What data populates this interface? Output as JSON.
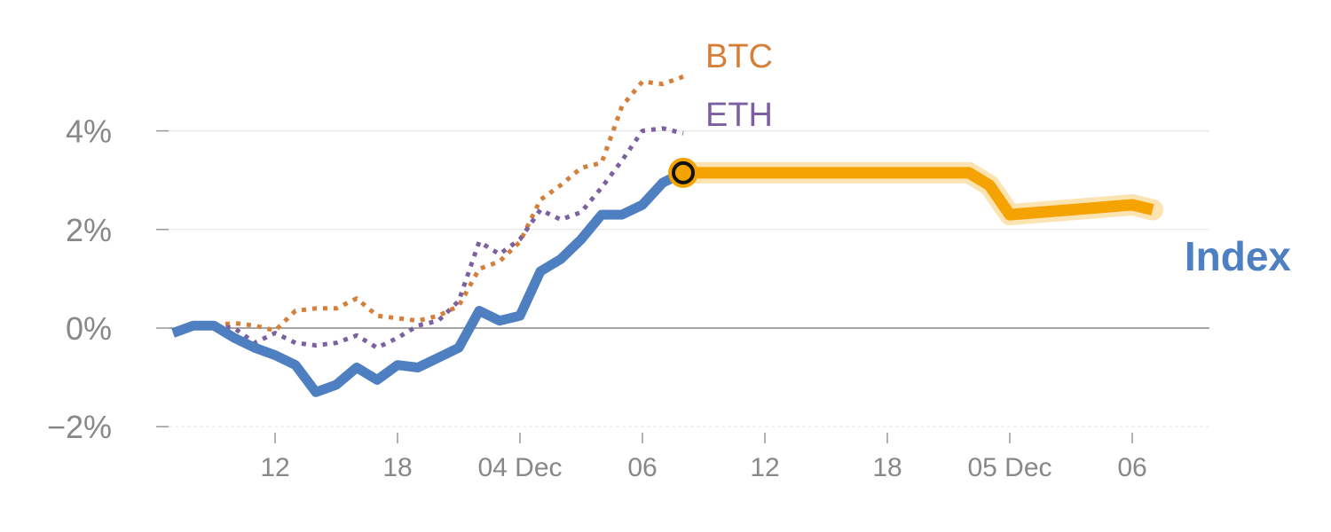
{
  "chart_data": {
    "type": "line",
    "y_unit": "%",
    "ylim": [
      -2.2,
      4.9
    ],
    "y_ticks": [
      {
        "value": 4,
        "label": "4%"
      },
      {
        "value": 2,
        "label": "2%"
      },
      {
        "value": 0,
        "label": "0%"
      },
      {
        "value": -2,
        "label": "−2%"
      }
    ],
    "x_range": [
      "2023-12-03T06:00",
      "2023-12-05T09:00"
    ],
    "x_ticks": [
      {
        "x": "2023-12-03T12:00",
        "label": "12"
      },
      {
        "x": "2023-12-03T18:00",
        "label": "18"
      },
      {
        "x": "2023-12-04T00:00",
        "label": "04 Dec"
      },
      {
        "x": "2023-12-04T06:00",
        "label": "06"
      },
      {
        "x": "2023-12-04T12:00",
        "label": "12"
      },
      {
        "x": "2023-12-04T18:00",
        "label": "18"
      },
      {
        "x": "2023-12-05T00:00",
        "label": "05 Dec"
      },
      {
        "x": "2023-12-05T06:00",
        "label": "06"
      }
    ],
    "grid": true,
    "series": [
      {
        "name": "BTC",
        "color": "#d5803a",
        "style": "dotted",
        "points": [
          [
            "2023-12-03T07:00",
            -0.1
          ],
          [
            "2023-12-03T08:00",
            0.0
          ],
          [
            "2023-12-03T09:00",
            0.05
          ],
          [
            "2023-12-03T10:00",
            0.1
          ],
          [
            "2023-12-03T11:00",
            0.05
          ],
          [
            "2023-12-03T12:00",
            -0.05
          ],
          [
            "2023-12-03T13:00",
            0.35
          ],
          [
            "2023-12-03T14:00",
            0.4
          ],
          [
            "2023-12-03T15:00",
            0.4
          ],
          [
            "2023-12-03T16:00",
            0.6
          ],
          [
            "2023-12-03T17:00",
            0.25
          ],
          [
            "2023-12-03T18:00",
            0.2
          ],
          [
            "2023-12-03T19:00",
            0.15
          ],
          [
            "2023-12-03T20:00",
            0.25
          ],
          [
            "2023-12-03T21:00",
            0.45
          ],
          [
            "2023-12-03T22:00",
            1.2
          ],
          [
            "2023-12-03T23:00",
            1.35
          ],
          [
            "2023-12-04T00:00",
            1.75
          ],
          [
            "2023-12-04T01:00",
            2.6
          ],
          [
            "2023-12-04T02:00",
            2.9
          ],
          [
            "2023-12-04T03:00",
            3.25
          ],
          [
            "2023-12-04T04:00",
            3.35
          ],
          [
            "2023-12-04T05:00",
            4.5
          ],
          [
            "2023-12-04T06:00",
            5.0
          ],
          [
            "2023-12-04T07:00",
            4.95
          ],
          [
            "2023-12-04T08:00",
            5.1
          ]
        ]
      },
      {
        "name": "ETH",
        "color": "#7d60a0",
        "style": "dotted",
        "points": [
          [
            "2023-12-03T07:00",
            -0.05
          ],
          [
            "2023-12-03T08:00",
            0.0
          ],
          [
            "2023-12-03T09:00",
            0.05
          ],
          [
            "2023-12-03T10:00",
            0.0
          ],
          [
            "2023-12-03T11:00",
            -0.3
          ],
          [
            "2023-12-03T12:00",
            -0.1
          ],
          [
            "2023-12-03T13:00",
            -0.3
          ],
          [
            "2023-12-03T14:00",
            -0.35
          ],
          [
            "2023-12-03T15:00",
            -0.3
          ],
          [
            "2023-12-03T16:00",
            -0.15
          ],
          [
            "2023-12-03T17:00",
            -0.4
          ],
          [
            "2023-12-03T18:00",
            -0.2
          ],
          [
            "2023-12-03T19:00",
            0.05
          ],
          [
            "2023-12-03T20:00",
            0.15
          ],
          [
            "2023-12-03T21:00",
            0.55
          ],
          [
            "2023-12-03T22:00",
            1.75
          ],
          [
            "2023-12-03T23:00",
            1.5
          ],
          [
            "2023-12-04T00:00",
            1.8
          ],
          [
            "2023-12-04T01:00",
            2.4
          ],
          [
            "2023-12-04T02:00",
            2.2
          ],
          [
            "2023-12-04T03:00",
            2.35
          ],
          [
            "2023-12-04T04:00",
            2.85
          ],
          [
            "2023-12-04T05:00",
            3.4
          ],
          [
            "2023-12-04T06:00",
            4.0
          ],
          [
            "2023-12-04T07:00",
            4.05
          ],
          [
            "2023-12-04T08:00",
            3.95
          ]
        ]
      },
      {
        "name": "Index",
        "color": "#4e7fc1",
        "style": "solid",
        "points": [
          [
            "2023-12-03T07:00",
            -0.1
          ],
          [
            "2023-12-03T08:00",
            0.05
          ],
          [
            "2023-12-03T09:00",
            0.05
          ],
          [
            "2023-12-03T10:00",
            -0.2
          ],
          [
            "2023-12-03T11:00",
            -0.4
          ],
          [
            "2023-12-03T12:00",
            -0.55
          ],
          [
            "2023-12-03T13:00",
            -0.75
          ],
          [
            "2023-12-03T14:00",
            -1.3
          ],
          [
            "2023-12-03T15:00",
            -1.15
          ],
          [
            "2023-12-03T16:00",
            -0.8
          ],
          [
            "2023-12-03T17:00",
            -1.05
          ],
          [
            "2023-12-03T18:00",
            -0.75
          ],
          [
            "2023-12-03T19:00",
            -0.8
          ],
          [
            "2023-12-03T20:00",
            -0.6
          ],
          [
            "2023-12-03T21:00",
            -0.4
          ],
          [
            "2023-12-03T22:00",
            0.35
          ],
          [
            "2023-12-03T23:00",
            0.15
          ],
          [
            "2023-12-04T00:00",
            0.25
          ],
          [
            "2023-12-04T01:00",
            1.15
          ],
          [
            "2023-12-04T02:00",
            1.4
          ],
          [
            "2023-12-04T03:00",
            1.8
          ],
          [
            "2023-12-04T04:00",
            2.3
          ],
          [
            "2023-12-04T05:00",
            2.3
          ],
          [
            "2023-12-04T06:00",
            2.5
          ],
          [
            "2023-12-04T07:00",
            2.95
          ],
          [
            "2023-12-04T08:00",
            3.15
          ]
        ]
      },
      {
        "name": "",
        "color": "#f5a300",
        "style": "solid",
        "points": [
          [
            "2023-12-04T08:00",
            3.15
          ],
          [
            "2023-12-04T12:00",
            3.15
          ],
          [
            "2023-12-04T18:00",
            3.15
          ],
          [
            "2023-12-04T22:00",
            3.15
          ],
          [
            "2023-12-04T23:00",
            2.9
          ],
          [
            "2023-12-05T00:00",
            2.3
          ],
          [
            "2023-12-05T03:00",
            2.4
          ],
          [
            "2023-12-05T06:00",
            2.5
          ],
          [
            "2023-12-05T07:00",
            2.4
          ]
        ]
      }
    ],
    "annotations": [
      {
        "text": "BTC",
        "color": "#d5803a"
      },
      {
        "text": "ETH",
        "color": "#7d60a0"
      },
      {
        "text": "Index",
        "color": "#4e7fc1"
      }
    ],
    "marker": {
      "x": "2023-12-04T08:00",
      "y": 3.15,
      "fill": "#f5a300"
    }
  }
}
